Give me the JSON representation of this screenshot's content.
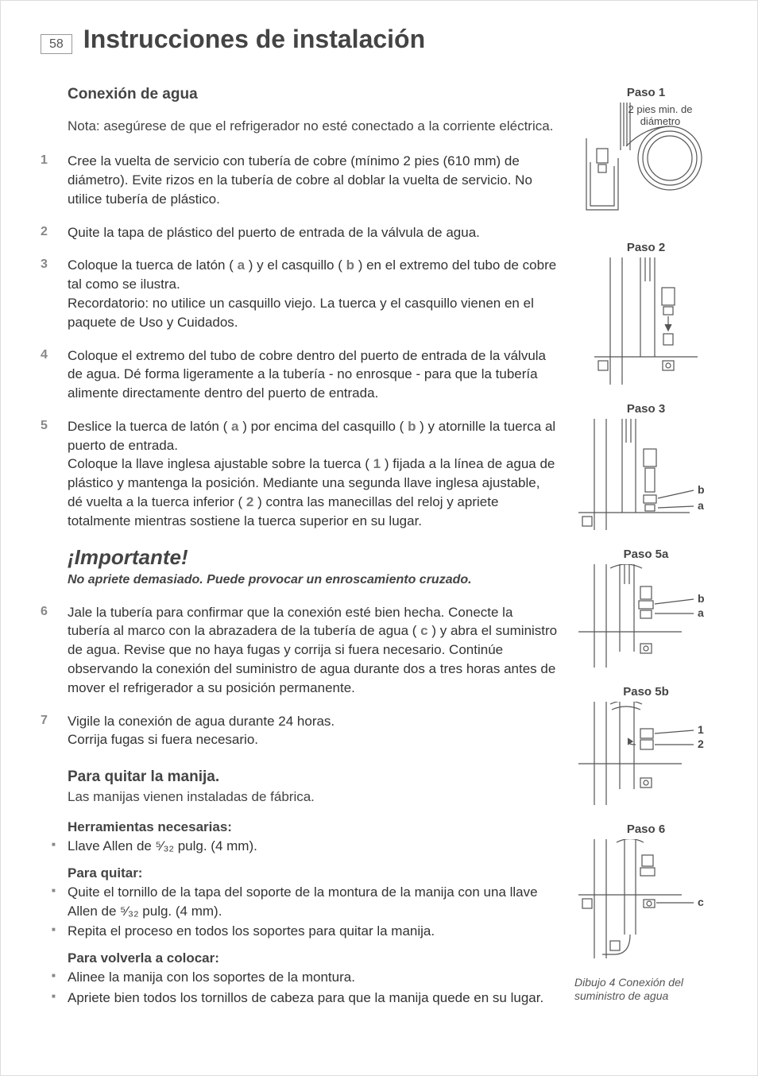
{
  "page_number": "58",
  "title": "Instrucciones de instalación",
  "section_title": "Conexión de agua",
  "note": "Nota: asegúrese de que el refrigerador no esté conectado a la corriente eléctrica.",
  "steps": [
    "Cree la vuelta de servicio con tubería de cobre (mínimo 2 pies (610 mm) de diámetro). Evite rizos en la tubería de cobre al doblar la vuelta de servicio. No utilice tubería de plástico.",
    "Quite la tapa de plástico del puerto de entrada de la válvula de agua.",
    "Coloque la tuerca de latón ( a ) y el casquillo ( b ) en el extremo del tubo de cobre tal como se ilustra.\nRecordatorio: no utilice un casquillo viejo. La tuerca y el casquillo vienen en el paquete de Uso y Cuidados.",
    "Coloque el extremo del tubo de cobre dentro del puerto de entrada de la válvula de agua. Dé forma ligeramente a la tubería - no enrosque - para que la tubería alimente directamente dentro del puerto de entrada.",
    "Deslice la tuerca de latón ( a ) por encima del casquillo ( b ) y atornille la tuerca al puerto de entrada.\nColoque la llave inglesa ajustable sobre la tuerca ( 1 ) fijada a la línea de agua de plástico y mantenga la posición. Mediante una segunda llave inglesa ajustable, dé vuelta a la tuerca inferior ( 2 ) contra las manecillas del reloj y apriete totalmente mientras sostiene la tuerca superior en su lugar.",
    "Jale la tubería para confirmar que la conexión esté bien hecha. Conecte la tubería al marco con la abrazadera de la tubería de agua ( c ) y abra el suministro de agua. Revise que no haya fugas y corrija si fuera necesario. Continúe observando la conexión del suministro de agua durante dos a tres horas antes de mover el refrigerador a su posición permanente.",
    "Vigile la conexión de agua durante 24 horas.\nCorrija fugas si fuera necesario."
  ],
  "important_heading": "¡Importante!",
  "important_sub": "No apriete demasiado. Puede provocar un enroscamiento cruzado.",
  "handle_section_title": "Para quitar la manija.",
  "handle_section_sub": "Las manijas vienen instaladas de fábrica.",
  "tools_heading": "Herramientas necesarias:",
  "tools_items": [
    "Llave Allen de ⁵⁄₃₂ pulg. (4 mm)."
  ],
  "remove_heading": "Para quitar:",
  "remove_items": [
    "Quite el tornillo de la tapa del soporte de la montura de la manija con una llave Allen de ⁵⁄₃₂ pulg. (4 mm).",
    "Repita el proceso en todos los soportes para quitar la manija."
  ],
  "replace_heading": "Para volverla a colocar:",
  "replace_items": [
    "Alinee la manija con los soportes de la montura.",
    "Apriete bien todos los tornillos de cabeza para que la manija quede en su lugar."
  ],
  "figures": {
    "f1": {
      "label": "Paso 1",
      "note": "2 pies min. de diámetro"
    },
    "f2": {
      "label": "Paso 2"
    },
    "f3": {
      "label": "Paso 3",
      "labels": {
        "a": "a",
        "b": "b"
      }
    },
    "f5a": {
      "label": "Paso 5a",
      "labels": {
        "a": "a",
        "b": "b"
      }
    },
    "f5b": {
      "label": "Paso 5b",
      "labels": {
        "l1": "1",
        "l2": "2"
      }
    },
    "f6": {
      "label": "Paso 6",
      "labels": {
        "c": "c"
      }
    },
    "caption": "Dibujo 4 Conexión del suministro de agua"
  },
  "colors": {
    "text": "#333333",
    "muted": "#888888",
    "heading": "#444444",
    "stroke": "#555555",
    "background": "#ffffff"
  }
}
